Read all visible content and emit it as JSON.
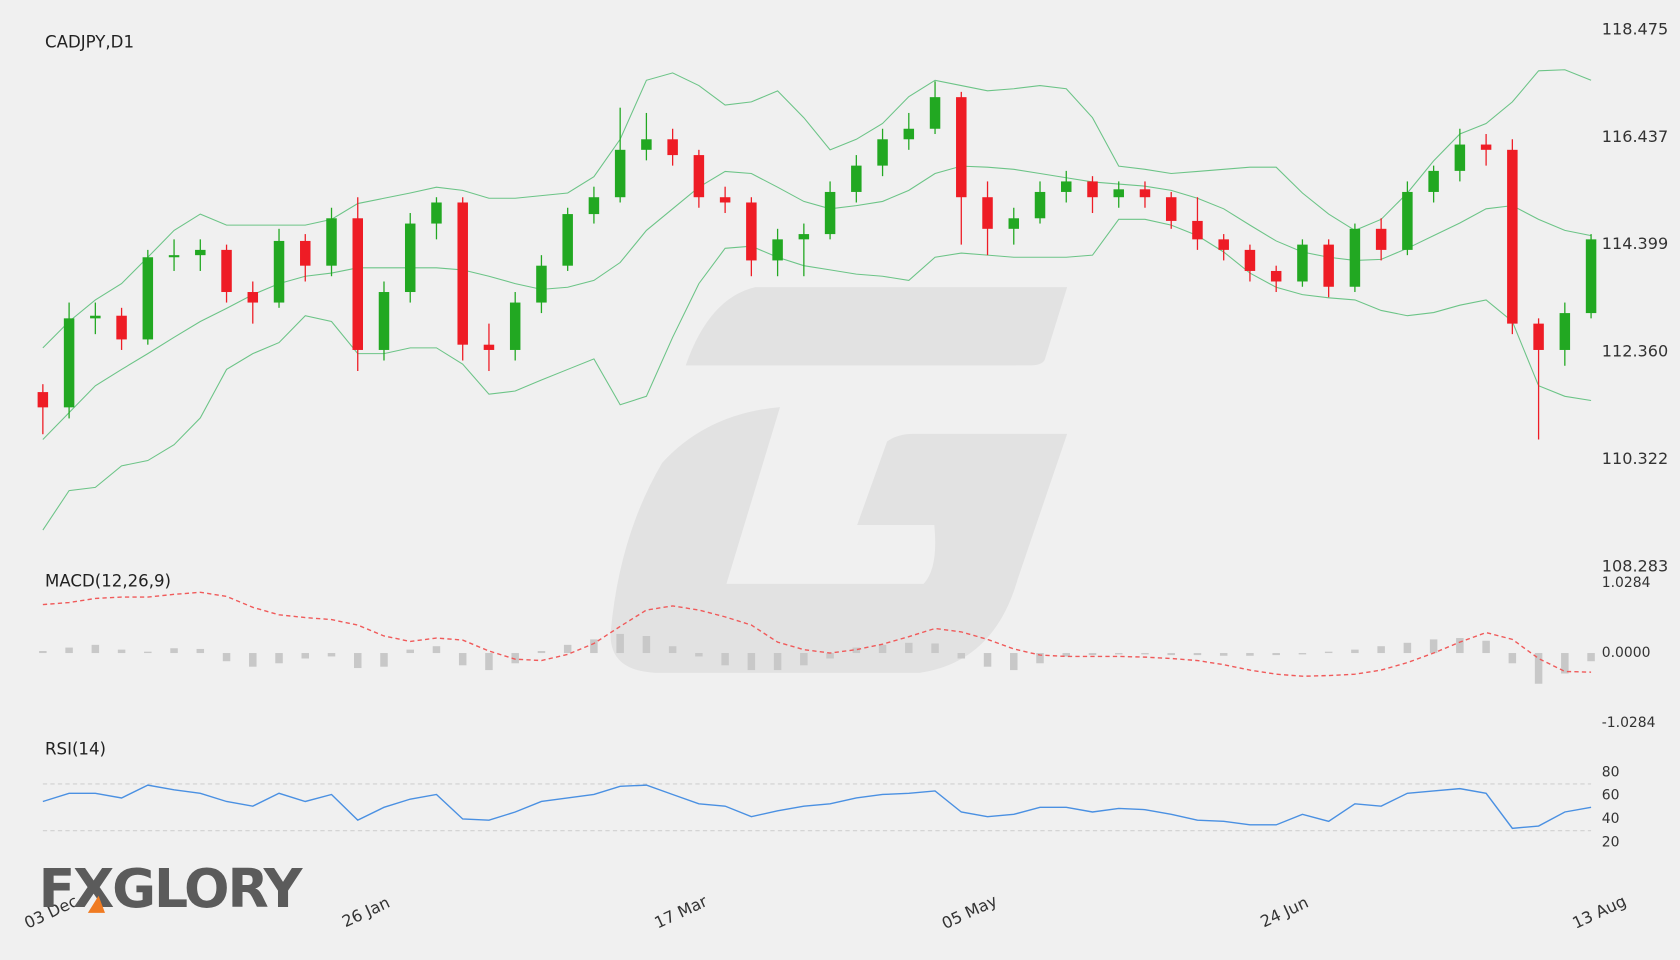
{
  "chart_data": [
    {
      "type": "candlestick",
      "title": "CADJPY,D1",
      "categories": [
        "03 Dec",
        null,
        null,
        null,
        null,
        null,
        null,
        null,
        null,
        null,
        null,
        null,
        "26 Jan",
        null,
        null,
        null,
        null,
        null,
        null,
        null,
        null,
        null,
        null,
        null,
        "17 Mar",
        null,
        null,
        null,
        null,
        null,
        null,
        null,
        null,
        null,
        null,
        "05 May",
        null,
        null,
        null,
        null,
        null,
        null,
        null,
        null,
        null,
        null,
        null,
        "24 Jun",
        null,
        null,
        null,
        null,
        null,
        null,
        null,
        null,
        null,
        null,
        null,
        "13 Aug"
      ],
      "open": [
        111.6,
        111.31,
        113.0,
        113.05,
        112.6,
        114.16,
        114.2,
        114.3,
        113.5,
        113.3,
        114.47,
        114.0,
        114.9,
        112.4,
        113.5,
        114.8,
        115.2,
        112.5,
        112.4,
        113.3,
        114.0,
        114.98,
        115.3,
        116.2,
        116.4,
        116.1,
        115.3,
        115.2,
        114.1,
        114.5,
        114.6,
        115.4,
        115.9,
        116.4,
        116.6,
        117.2,
        115.3,
        114.7,
        114.9,
        115.4,
        115.6,
        115.3,
        115.45,
        115.3,
        114.85,
        114.5,
        114.3,
        113.9,
        113.7,
        114.4,
        113.6,
        114.7,
        114.3,
        115.4,
        115.8,
        116.3,
        116.2,
        112.9,
        112.4,
        113.1
      ],
      "high": [
        111.75,
        113.3,
        113.3,
        113.2,
        114.3,
        114.5,
        114.5,
        114.4,
        113.7,
        114.7,
        114.6,
        115.1,
        115.3,
        113.7,
        115.0,
        115.3,
        115.3,
        112.9,
        113.5,
        114.2,
        115.1,
        115.5,
        117.0,
        116.9,
        116.6,
        116.2,
        115.5,
        115.3,
        114.7,
        114.8,
        115.6,
        116.1,
        116.6,
        116.9,
        117.5,
        117.3,
        115.6,
        115.1,
        115.6,
        115.8,
        115.7,
        115.6,
        115.6,
        115.4,
        115.3,
        114.6,
        114.4,
        114.0,
        114.5,
        114.5,
        114.8,
        114.9,
        115.6,
        115.9,
        116.6,
        116.5,
        116.4,
        113.0,
        113.3,
        114.6
      ],
      "low": [
        110.8,
        111.1,
        112.7,
        112.4,
        112.5,
        113.9,
        113.9,
        113.3,
        112.9,
        113.2,
        113.7,
        113.8,
        112.0,
        112.2,
        113.3,
        114.5,
        112.2,
        112.0,
        112.2,
        113.1,
        113.9,
        114.8,
        115.2,
        116.0,
        115.9,
        115.1,
        115.0,
        113.8,
        113.8,
        113.8,
        114.5,
        115.2,
        115.7,
        116.2,
        116.5,
        114.4,
        114.2,
        114.4,
        114.8,
        115.2,
        115.0,
        115.1,
        115.1,
        114.7,
        114.3,
        114.1,
        113.7,
        113.5,
        113.6,
        113.4,
        113.5,
        114.1,
        114.2,
        115.2,
        115.6,
        115.9,
        112.7,
        110.7,
        112.1,
        113.0
      ],
      "close": [
        111.31,
        113.0,
        113.05,
        112.6,
        114.16,
        114.2,
        114.3,
        113.5,
        113.3,
        114.47,
        114.0,
        114.9,
        112.4,
        113.5,
        114.8,
        115.2,
        112.5,
        112.4,
        113.3,
        114.0,
        114.98,
        115.3,
        116.2,
        116.4,
        116.1,
        115.3,
        115.2,
        114.1,
        114.5,
        114.6,
        115.4,
        115.9,
        116.4,
        116.6,
        117.2,
        115.3,
        114.7,
        114.9,
        115.4,
        115.6,
        115.3,
        115.45,
        115.3,
        114.85,
        114.5,
        114.3,
        113.9,
        113.7,
        114.4,
        113.6,
        114.7,
        114.3,
        115.4,
        115.8,
        116.3,
        116.2,
        112.9,
        112.4,
        113.1,
        114.5
      ],
      "up_color": "#22a822",
      "down_color": "#ee1c25",
      "bands": {
        "color": "#6cc487",
        "upper": [
          112.44,
          112.94,
          113.35,
          113.66,
          114.16,
          114.67,
          114.98,
          114.77,
          114.77,
          114.77,
          114.77,
          114.88,
          115.18,
          115.28,
          115.38,
          115.49,
          115.43,
          115.28,
          115.28,
          115.33,
          115.38,
          115.69,
          116.4,
          117.52,
          117.66,
          117.42,
          117.05,
          117.11,
          117.32,
          116.81,
          116.2,
          116.4,
          116.7,
          117.21,
          117.52,
          117.42,
          117.32,
          117.36,
          117.42,
          117.36,
          116.81,
          115.89,
          115.83,
          115.75,
          115.79,
          115.83,
          115.87,
          115.87,
          115.38,
          114.98,
          114.67,
          114.88,
          115.38,
          115.99,
          116.5,
          116.7,
          117.11,
          117.7,
          117.72,
          117.52
        ],
        "middle": [
          110.7,
          111.21,
          111.72,
          112.03,
          112.33,
          112.64,
          112.94,
          113.19,
          113.45,
          113.66,
          113.8,
          113.86,
          113.96,
          113.96,
          113.96,
          113.96,
          113.92,
          113.8,
          113.66,
          113.55,
          113.59,
          113.72,
          114.06,
          114.67,
          115.08,
          115.49,
          115.79,
          115.75,
          115.49,
          115.22,
          115.08,
          115.14,
          115.22,
          115.43,
          115.75,
          115.89,
          115.87,
          115.83,
          115.75,
          115.67,
          115.59,
          115.55,
          115.51,
          115.43,
          115.28,
          115.08,
          114.77,
          114.47,
          114.26,
          114.16,
          114.1,
          114.12,
          114.33,
          114.57,
          114.81,
          115.08,
          115.14,
          114.88,
          114.67,
          114.57
        ],
        "lower": [
          108.98,
          109.73,
          109.79,
          110.2,
          110.3,
          110.6,
          111.11,
          112.03,
          112.33,
          112.54,
          113.05,
          112.94,
          112.33,
          112.33,
          112.44,
          112.44,
          112.13,
          111.56,
          111.62,
          111.83,
          112.03,
          112.23,
          111.36,
          111.52,
          112.64,
          113.66,
          114.33,
          114.37,
          114.16,
          114.0,
          113.92,
          113.84,
          113.8,
          113.72,
          114.16,
          114.24,
          114.2,
          114.16,
          114.16,
          114.16,
          114.2,
          114.88,
          114.88,
          114.77,
          114.57,
          114.26,
          113.86,
          113.59,
          113.45,
          113.39,
          113.35,
          113.15,
          113.05,
          113.11,
          113.25,
          113.35,
          112.94,
          111.72,
          111.52,
          111.44
        ]
      },
      "ylim": [
        108.283,
        118.475
      ],
      "yticks": [
        108.283,
        110.322,
        {
          "value": 112.36,
          "label": "112.360"
        },
        114.399,
        116.437,
        118.475
      ]
    },
    {
      "type": "macd",
      "title": "MACD(12,26,9)",
      "line": {
        "color": "#f05a5a",
        "values": [
          0.71,
          0.74,
          0.8,
          0.82,
          0.82,
          0.86,
          0.89,
          0.83,
          0.67,
          0.56,
          0.52,
          0.49,
          0.41,
          0.25,
          0.17,
          0.22,
          0.19,
          0.03,
          -0.09,
          -0.11,
          -0.02,
          0.14,
          0.39,
          0.63,
          0.69,
          0.63,
          0.53,
          0.41,
          0.16,
          0.05,
          0,
          0.05,
          0.13,
          0.24,
          0.36,
          0.31,
          0.2,
          0.06,
          -0.03,
          -0.05,
          -0.05,
          -0.05,
          -0.06,
          -0.08,
          -0.11,
          -0.17,
          -0.25,
          -0.31,
          -0.34,
          -0.33,
          -0.31,
          -0.25,
          -0.14,
          0,
          0.16,
          0.3,
          0.2,
          -0.08,
          -0.27,
          -0.28
        ]
      },
      "histogram": {
        "color": "#c8c8c8",
        "values": [
          0.03,
          0.08,
          0.12,
          0.05,
          0.02,
          0.07,
          0.06,
          -0.12,
          -0.2,
          -0.15,
          -0.08,
          -0.05,
          -0.22,
          -0.2,
          0.05,
          0.1,
          -0.18,
          -0.25,
          -0.15,
          0.03,
          0.12,
          0.2,
          0.28,
          0.25,
          0.1,
          -0.05,
          -0.18,
          -0.25,
          -0.25,
          -0.18,
          -0.08,
          0.08,
          0.12,
          0.15,
          0.14,
          -0.08,
          -0.2,
          -0.25,
          -0.15,
          -0.05,
          -0.03,
          -0.02,
          -0.02,
          -0.03,
          -0.03,
          -0.04,
          -0.04,
          -0.03,
          -0.02,
          0.02,
          0.05,
          0.1,
          0.15,
          0.2,
          0.22,
          0.18,
          -0.15,
          -0.45,
          -0.3,
          -0.12
        ]
      },
      "ylim": [
        -1.0284,
        1.0284
      ],
      "yticks": [
        -1.0284,
        {
          "value": 0,
          "label": "0.0000"
        },
        1.0284
      ]
    },
    {
      "type": "rsi",
      "title": "RSI(14)",
      "line": {
        "color": "#4a90e2",
        "values": [
          55,
          62,
          62,
          58,
          69,
          65,
          62,
          55,
          51,
          62,
          55,
          61,
          39,
          50,
          57,
          61,
          40,
          39,
          46,
          55,
          58,
          61,
          68,
          69,
          61,
          53,
          51,
          42,
          47,
          51,
          53,
          58,
          61,
          62,
          64,
          46,
          42,
          44,
          50,
          50,
          46,
          49,
          48,
          44,
          39,
          38,
          35,
          35,
          44,
          38,
          53,
          51,
          62,
          64,
          66,
          62,
          32,
          34,
          46,
          50
        ]
      },
      "levels": [
        70,
        30
      ],
      "ylim": [
        0,
        100
      ],
      "yticks": [
        20,
        40,
        60,
        80
      ]
    }
  ],
  "logo": "FXGLORY"
}
